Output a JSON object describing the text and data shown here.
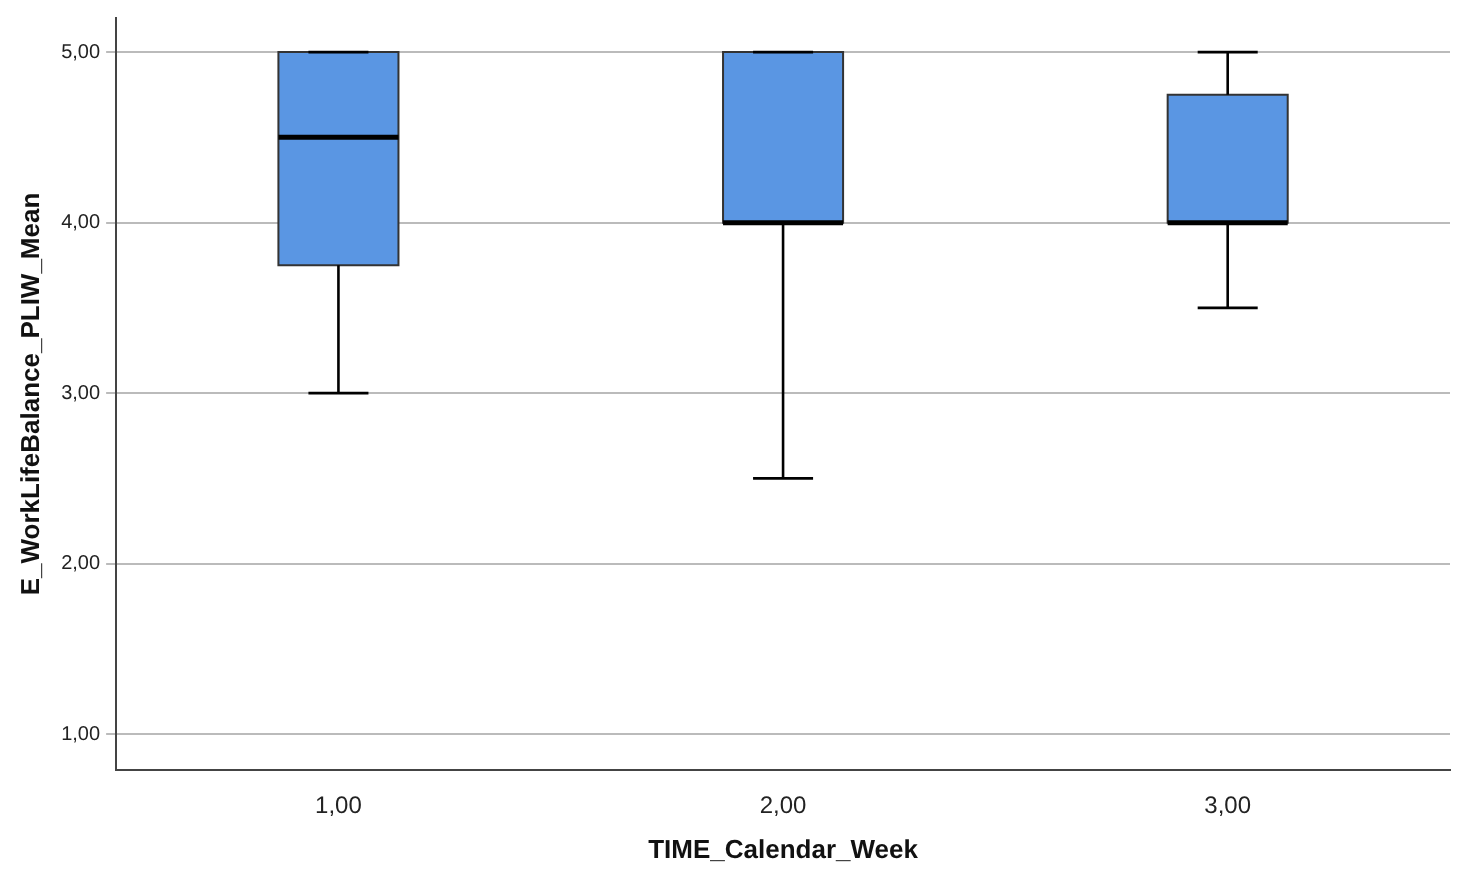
{
  "chart_data": {
    "type": "box",
    "xlabel": "TIME_Calendar_Week",
    "ylabel": "E_WorkLifeBalance_PLIW_Mean",
    "categories": [
      "1,00",
      "2,00",
      "3,00"
    ],
    "color": "#5a96e3",
    "boxes": [
      {
        "low": 3,
        "q1": 3.75,
        "median": 4.5,
        "q3": 5,
        "high": 5
      },
      {
        "low": 2.5,
        "q1": 4,
        "median": 4,
        "q3": 5,
        "high": 5
      },
      {
        "low": 3.5,
        "q1": 4,
        "median": 4,
        "q3": 4.75,
        "high": 5
      }
    ],
    "ylim": [
      0.79,
      5.2
    ],
    "yticks": [
      {
        "value": 1,
        "label": "1,00"
      },
      {
        "value": 2,
        "label": "2,00"
      },
      {
        "value": 3,
        "label": "3,00"
      },
      {
        "value": 4,
        "label": "4,00"
      },
      {
        "value": 5,
        "label": "5,00"
      }
    ],
    "grid": "y",
    "legend": false
  }
}
